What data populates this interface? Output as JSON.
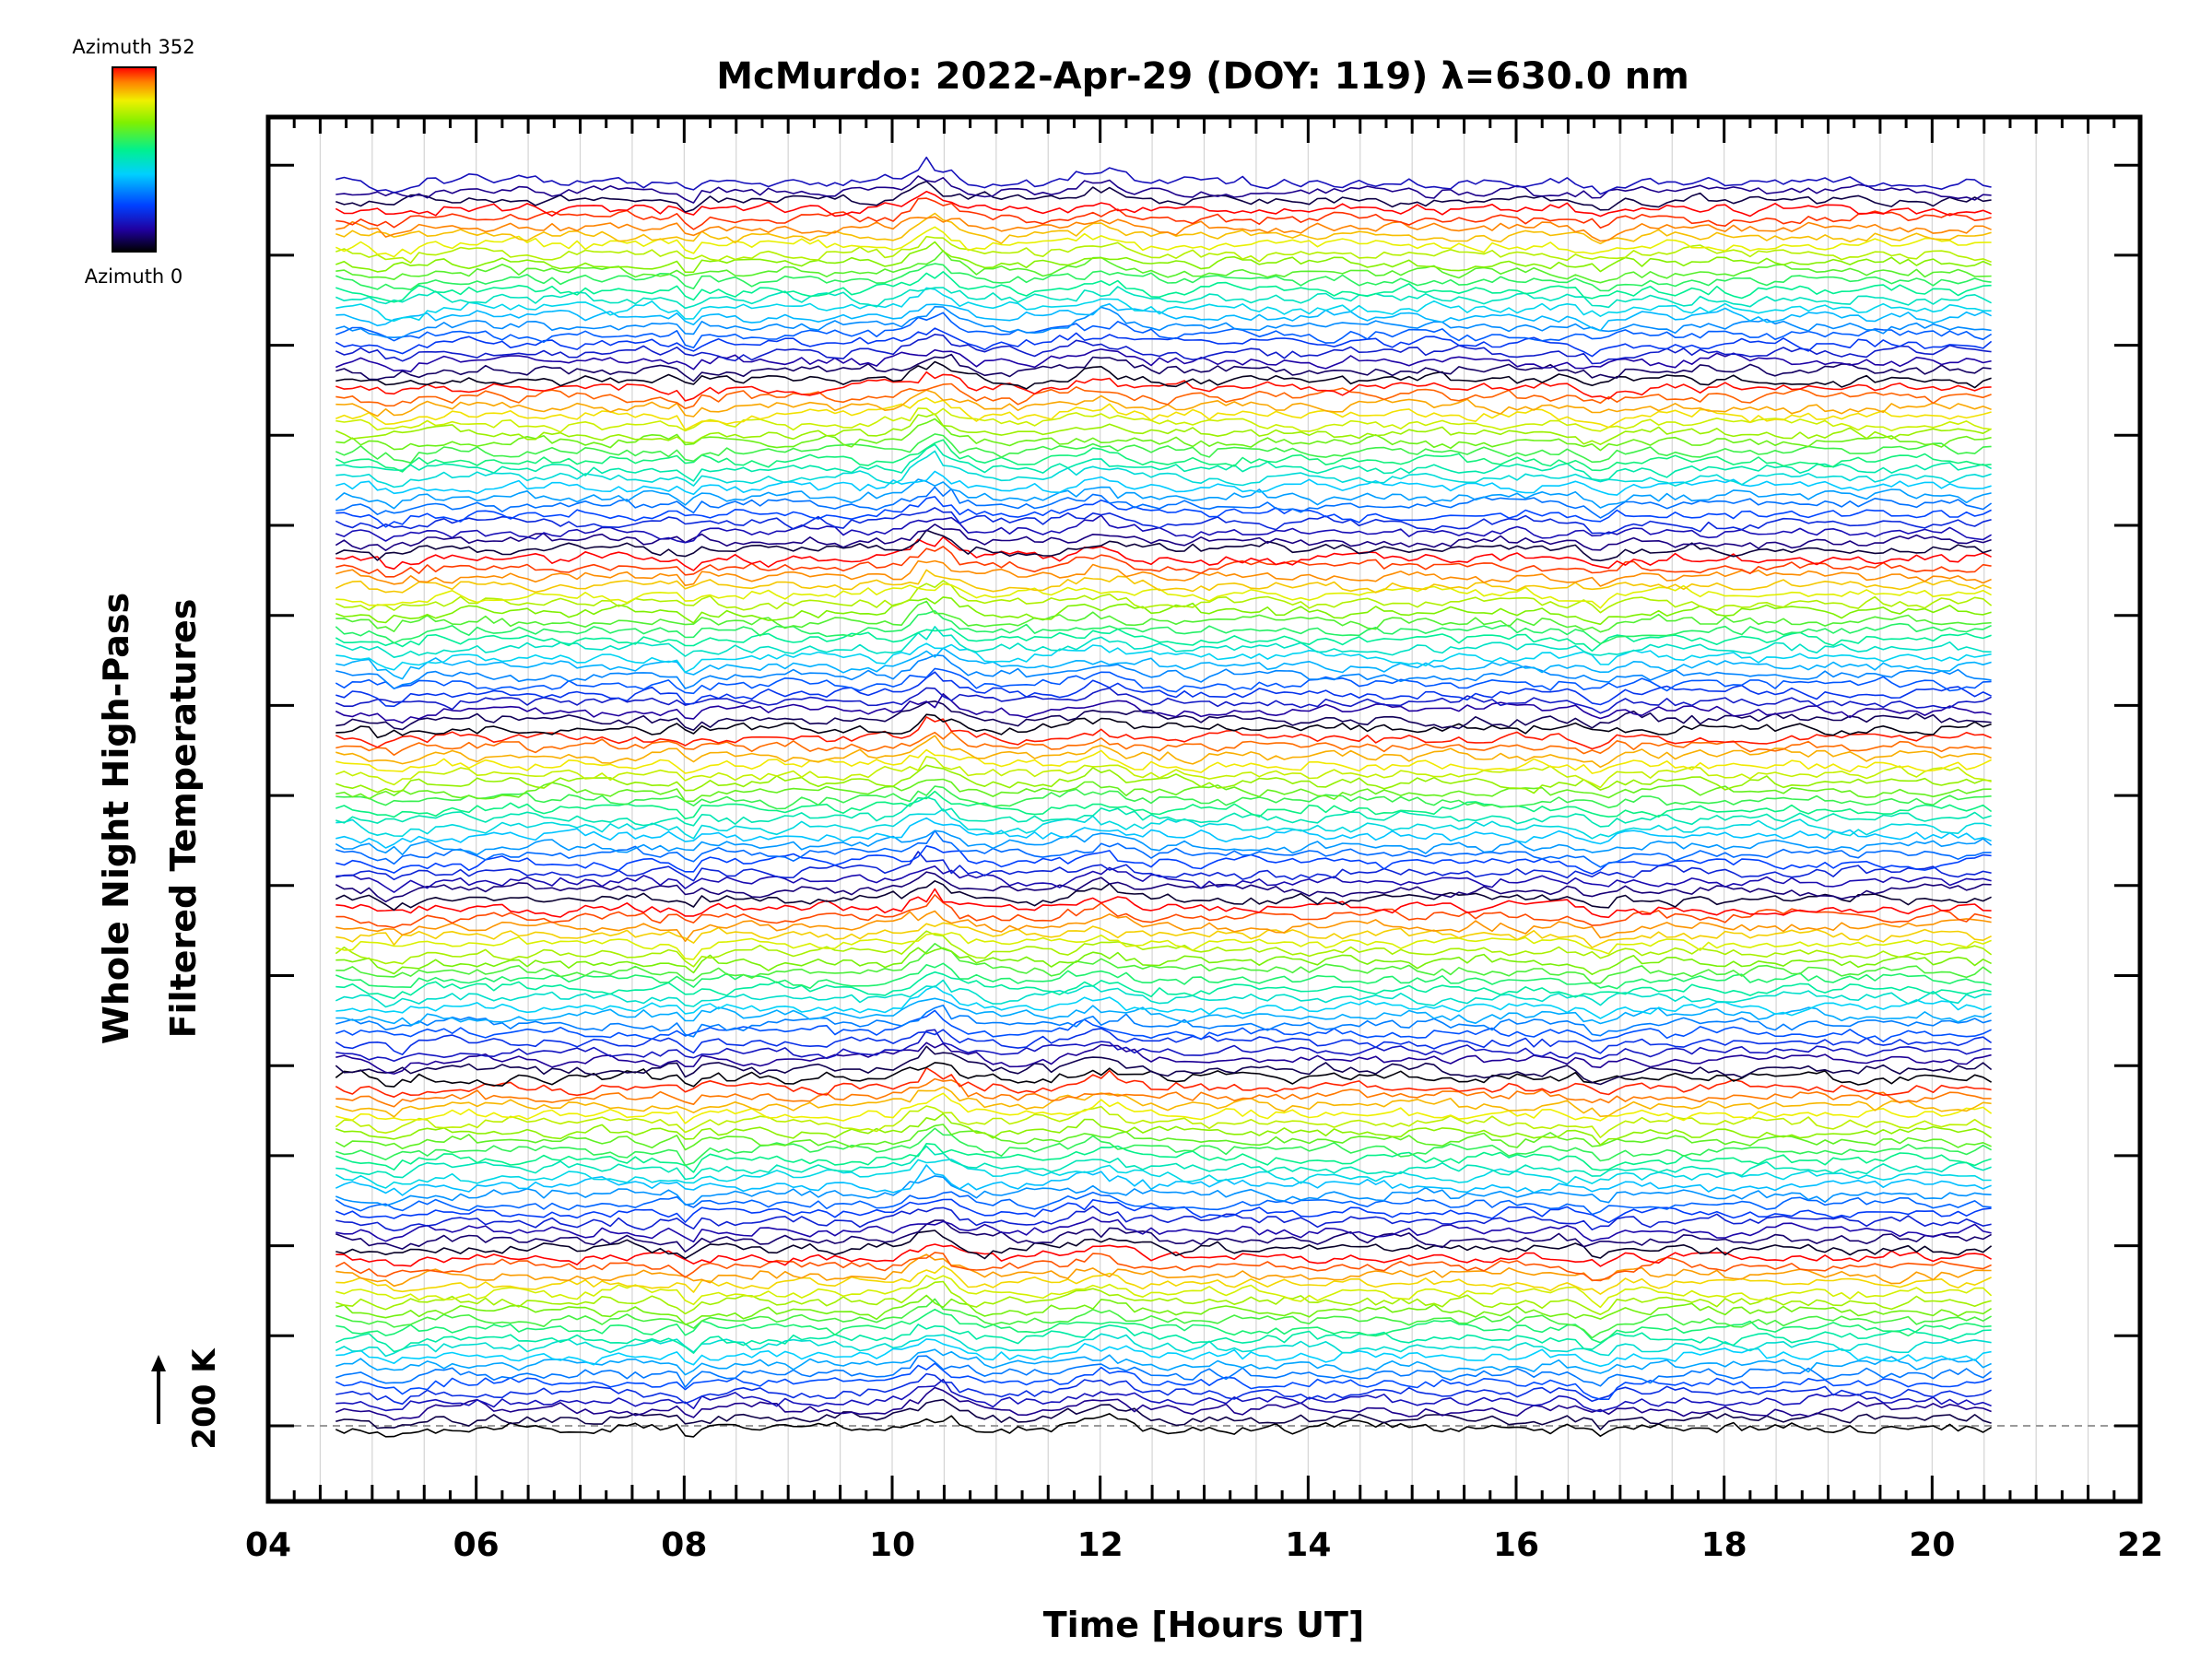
{
  "chart_data": {
    "type": "line",
    "title": "McMurdo: 2022-Apr-29 (DOY: 119) λ=630.0 nm",
    "xlabel": "Time [Hours UT]",
    "ylabel_line1": "Whole Night High-Pass",
    "ylabel_line2": "Filtered Temperatures",
    "xlim": [
      4,
      22
    ],
    "x_ticks": [
      "04",
      "06",
      "08",
      "10",
      "12",
      "14",
      "16",
      "18",
      "20",
      "22"
    ],
    "data_x_range": [
      4.65,
      20.58
    ],
    "colorbar": {
      "top_label": "Azimuth 352",
      "bottom_label": "Azimuth 0",
      "colormap": "rainbow"
    },
    "scale_bar_label": "200 K",
    "grid": "vertical lines every half hour",
    "n_traces": 140,
    "colors": {
      "azimuth_0": "#000000",
      "low": "#2020ff",
      "mid": "#00e0e0",
      "high_mid": "#c0f000",
      "azimuth_352": "#ff2000"
    }
  }
}
